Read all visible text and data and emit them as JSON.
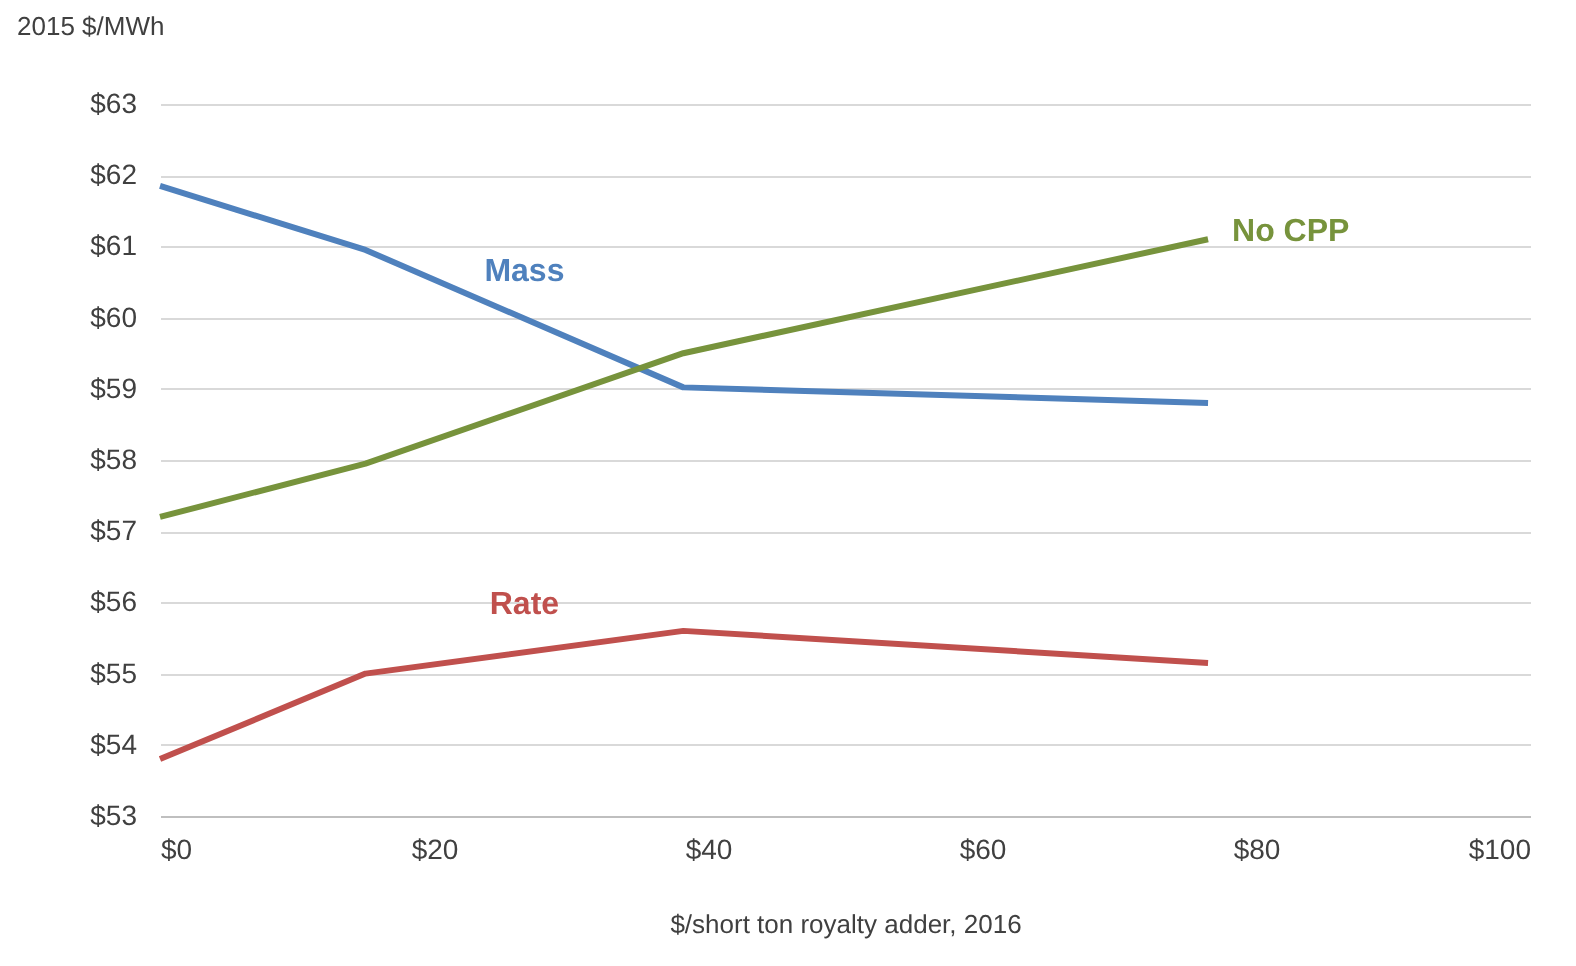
{
  "chart_data": {
    "type": "line",
    "xlabel": "$/short ton royalty adder, 2016",
    "ylabel": "2015 $/MWh",
    "x": [
      0,
      15,
      38.2,
      76.5
    ],
    "series": [
      {
        "name": "Mass",
        "color": "#4f81bd",
        "values": [
          61.85,
          60.95,
          59.02,
          58.8
        ]
      },
      {
        "name": "No CPP",
        "color": "#77933c",
        "values": [
          57.2,
          57.95,
          59.5,
          61.1
        ]
      },
      {
        "name": "Rate",
        "color": "#c0504d",
        "values": [
          53.8,
          55.0,
          55.6,
          55.15
        ]
      }
    ],
    "xlim": [
      0,
      100
    ],
    "xticks": [
      {
        "value": 0,
        "label": "$0"
      },
      {
        "value": 20,
        "label": "$20"
      },
      {
        "value": 40,
        "label": "$40"
      },
      {
        "value": 60,
        "label": "$60"
      },
      {
        "value": 80,
        "label": "$80"
      },
      {
        "value": 100,
        "label": "$100"
      }
    ],
    "ylim": [
      53,
      63
    ],
    "yticks": [
      {
        "value": 53,
        "label": "$53"
      },
      {
        "value": 54,
        "label": "$54"
      },
      {
        "value": 55,
        "label": "$55"
      },
      {
        "value": 56,
        "label": "$56"
      },
      {
        "value": 57,
        "label": "$57"
      },
      {
        "value": 58,
        "label": "$58"
      },
      {
        "value": 59,
        "label": "$59"
      },
      {
        "value": 60,
        "label": "$60"
      },
      {
        "value": 61,
        "label": "$61"
      },
      {
        "value": 62,
        "label": "$62"
      },
      {
        "value": 63,
        "label": "$63"
      }
    ],
    "grid": "y",
    "legend": false,
    "marker": "none",
    "line_style": "solid"
  }
}
